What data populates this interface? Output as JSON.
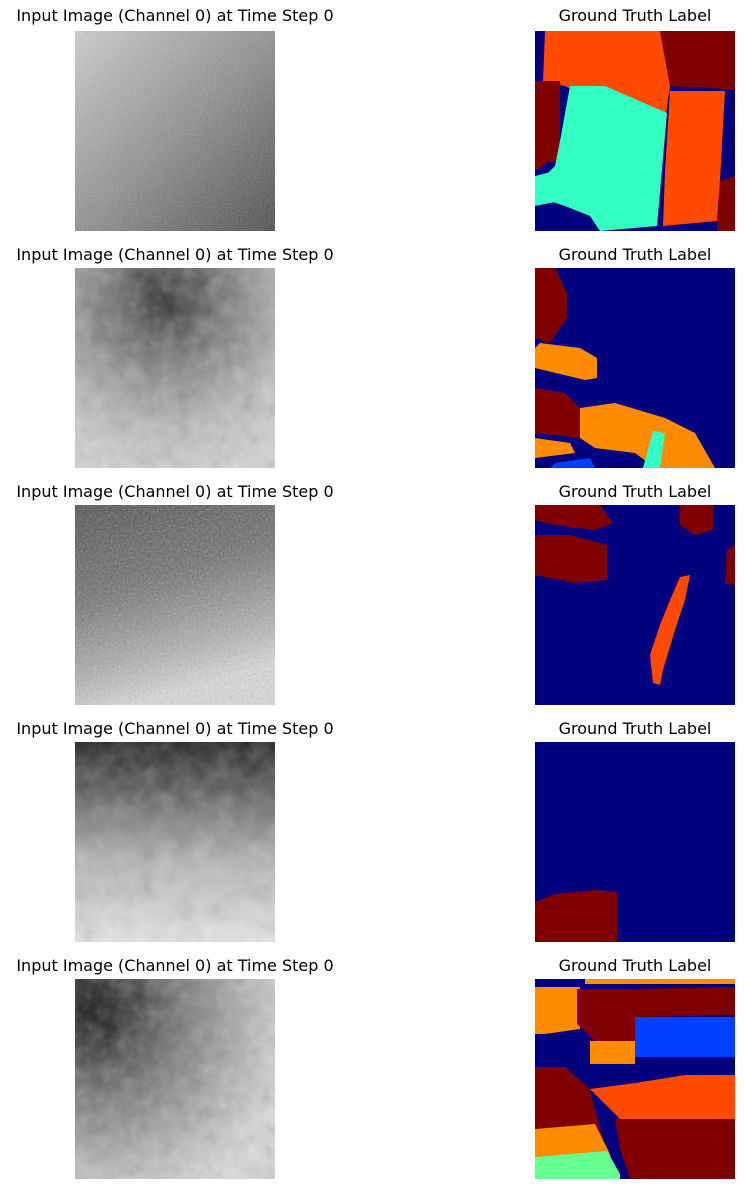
{
  "rows": [
    {
      "input_title": "Input Image (Channel 0) at Time Step 0",
      "label_title": "Ground Truth Label"
    },
    {
      "input_title": "Input Image (Channel 0) at Time Step 0",
      "label_title": "Ground Truth Label"
    },
    {
      "input_title": "Input Image (Channel 0) at Time Step 0",
      "label_title": "Ground Truth Label"
    },
    {
      "input_title": "Input Image (Channel 0) at Time Step 0",
      "label_title": "Ground Truth Label"
    },
    {
      "input_title": "Input Image (Channel 0) at Time Step 0",
      "label_title": "Ground Truth Label"
    }
  ],
  "colors": {
    "navy": "#00007f",
    "maroon": "#7f0000",
    "red_orange": "#ff4a00",
    "orange": "#ff8c00",
    "aquamarine": "#33ffc3",
    "blue": "#0040ff",
    "light_green": "#66ff90"
  }
}
